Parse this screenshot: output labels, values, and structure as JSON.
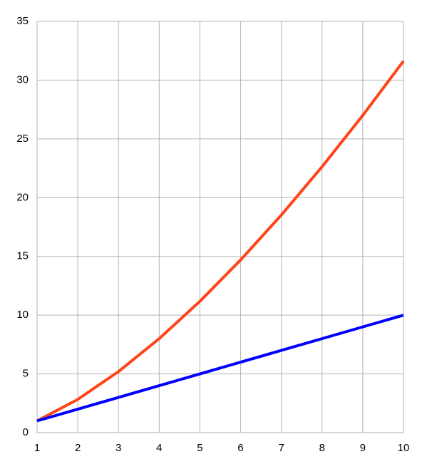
{
  "chart_data": {
    "type": "line",
    "x": [
      1,
      2,
      3,
      4,
      5,
      6,
      7,
      8,
      9,
      10
    ],
    "series": [
      {
        "color": "#ff4419",
        "values": [
          1,
          2.83,
          5.2,
          8,
          11.18,
          14.7,
          18.52,
          22.63,
          27,
          31.62
        ]
      },
      {
        "color": "#0000ff",
        "values": [
          1,
          2,
          3,
          4,
          5,
          6,
          7,
          8,
          9,
          10
        ]
      }
    ],
    "xlim": [
      1,
      10
    ],
    "xticks": [
      1,
      2,
      3,
      4,
      5,
      6,
      7,
      8,
      9,
      10
    ],
    "ylim": [
      0,
      35
    ],
    "yticks": [
      0,
      5,
      10,
      15,
      20,
      25,
      30,
      35
    ],
    "grid": true
  }
}
